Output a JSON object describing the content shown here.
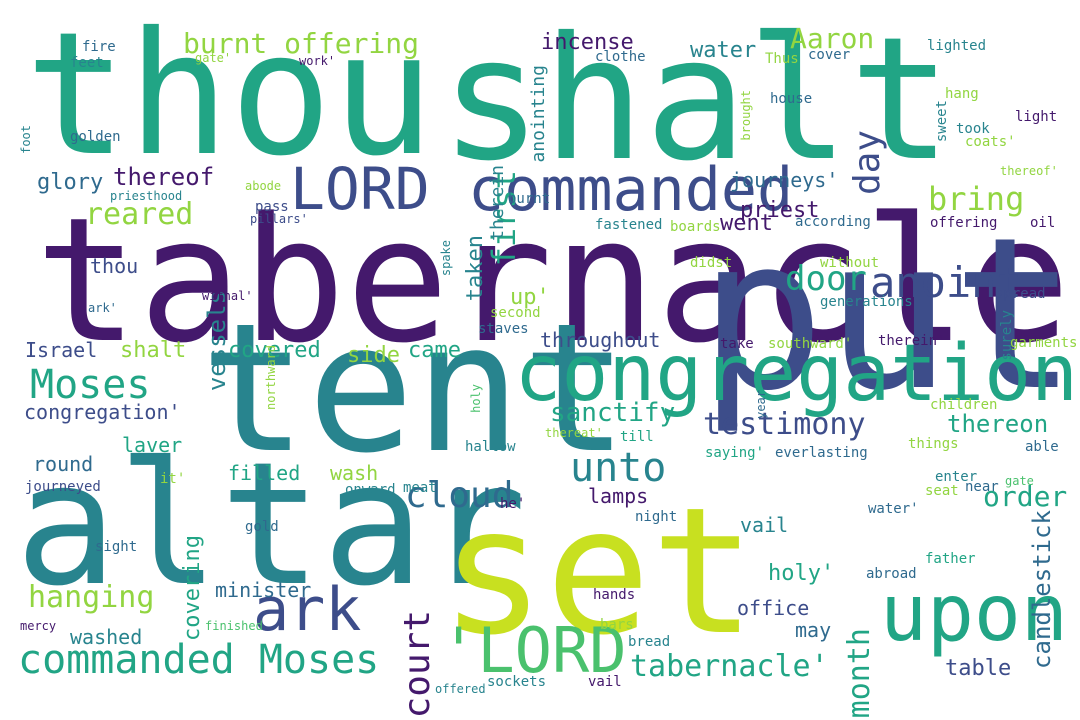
{
  "colors": {
    "navy": "#44196c",
    "indigo": "#3d4d8a",
    "slate": "#2f6a8e",
    "teal": "#28848e",
    "seagreen": "#21a585",
    "green": "#4ac16d",
    "lime": "#92d541",
    "yellow": "#c8e020"
  },
  "words": [
    "tabernacle",
    "thou",
    "shalt",
    "put",
    "tent",
    "altar",
    "set",
    "congregation",
    "upon",
    "commanded",
    "LORD",
    "commanded Moses",
    "'LORD",
    "ark",
    "Moses",
    "anoint",
    "unto",
    "cloud",
    "testimony",
    "tabernacle'",
    "burnt offering",
    "bring",
    "day",
    "court",
    "door",
    "reared",
    "first",
    "hanging",
    "month",
    "incense",
    "Aaron",
    "water",
    "taken",
    "anointing",
    "therein",
    "thereof",
    "glory",
    "journeys'",
    "priest",
    "went",
    "vessels",
    "thou",
    "up'",
    "shalt",
    "covered",
    "side",
    "came",
    "sanctify",
    "Israel",
    "congregation'",
    "laver",
    "lamps",
    "thereon",
    "round",
    "filled",
    "wash",
    "order",
    "candlestick",
    "vail",
    "holy'",
    "may",
    "office",
    "covering",
    "minister",
    "washed",
    "table",
    "throughout",
    "fire",
    "feet",
    "gate'",
    "work'",
    "clothe",
    "cover",
    "Thus",
    "lighted",
    "foot",
    "golden",
    "priesthood",
    "abode",
    "pillars'",
    "pass",
    "brought",
    "sweet",
    "hang",
    "took",
    "coats'",
    "light",
    "thereof'",
    "house",
    "burnt",
    "fastened",
    "boards",
    "according",
    "offering",
    "oil",
    "spake",
    "without",
    "didst",
    "generations",
    "surely",
    "spread",
    "ark'",
    "withal'",
    "second",
    "staves",
    "take",
    "southward'",
    "therein'",
    "garments",
    "holy",
    "northward",
    "year",
    "children",
    "thereat'",
    "till",
    "things",
    "saying'",
    "everlasting",
    "enter",
    "hallow",
    "seat",
    "near",
    "able",
    "it'",
    "he'",
    "journeyed",
    "onward",
    "meat",
    "water'",
    "gate",
    "night",
    "gold",
    "father",
    "sight",
    "abroad",
    "hands",
    "mercy",
    "finished",
    "bread",
    "offered",
    "sockets",
    "vail",
    "bars"
  ]
}
